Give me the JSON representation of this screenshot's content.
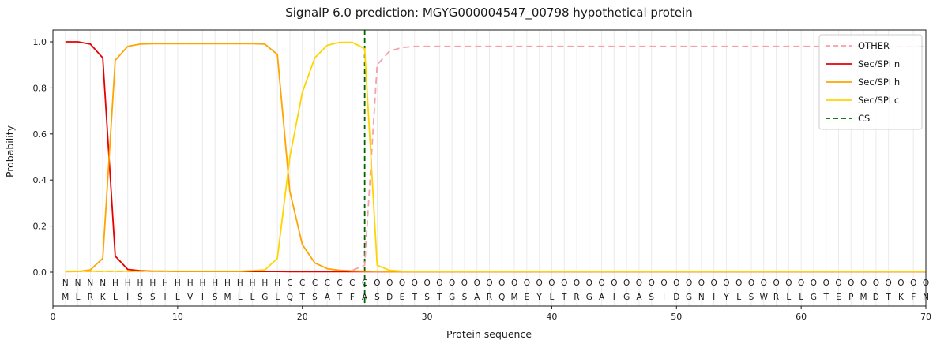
{
  "chart_data": {
    "type": "line",
    "title": "SignalP 6.0 prediction: MGYG000004547_00798 hypothetical protein",
    "xlabel": "Protein sequence",
    "ylabel": "Probability",
    "xlim": [
      0,
      70
    ],
    "ylim": [
      -0.15,
      1.05
    ],
    "xticks": [
      0,
      10,
      20,
      30,
      40,
      50,
      60,
      70
    ],
    "yticks": [
      0.0,
      0.2,
      0.4,
      0.6,
      0.8,
      1.0
    ],
    "grid": "vertical line per residue, light gray",
    "legend_position": "upper right",
    "x_positions": "residues 1 to 70",
    "series": [
      {
        "name": "OTHER",
        "color": "#f79fab",
        "dash": true,
        "values": [
          0.003,
          0.003,
          0.003,
          0.003,
          0.003,
          0.003,
          0.003,
          0.003,
          0.003,
          0.003,
          0.003,
          0.003,
          0.003,
          0.003,
          0.003,
          0.003,
          0.003,
          0.003,
          0.003,
          0.003,
          0.003,
          0.003,
          0.003,
          0.008,
          0.03,
          0.9,
          0.96,
          0.975,
          0.98,
          0.98,
          0.98,
          0.98,
          0.98,
          0.98,
          0.98,
          0.98,
          0.98,
          0.98,
          0.98,
          0.98,
          0.98,
          0.98,
          0.98,
          0.98,
          0.98,
          0.98,
          0.98,
          0.98,
          0.98,
          0.98,
          0.98,
          0.98,
          0.98,
          0.98,
          0.98,
          0.98,
          0.98,
          0.98,
          0.98,
          0.98,
          0.98,
          0.98,
          0.98,
          0.98,
          0.98,
          0.98,
          0.98,
          0.98,
          0.98,
          0.98
        ]
      },
      {
        "name": "Sec/SPI n",
        "color": "#e60000",
        "dash": false,
        "values": [
          1.0,
          1.0,
          0.99,
          0.93,
          0.07,
          0.012,
          0.006,
          0.004,
          0.004,
          0.003,
          0.003,
          0.003,
          0.003,
          0.003,
          0.003,
          0.003,
          0.003,
          0.003,
          0.002,
          0.002,
          0.002,
          0.002,
          0.002,
          0.002,
          0.002,
          0.002,
          0.002,
          0.002,
          0.002,
          0.002,
          0.002,
          0.002,
          0.002,
          0.002,
          0.002,
          0.002,
          0.002,
          0.002,
          0.002,
          0.002,
          0.002,
          0.002,
          0.002,
          0.002,
          0.002,
          0.002,
          0.002,
          0.002,
          0.002,
          0.002,
          0.002,
          0.002,
          0.002,
          0.002,
          0.002,
          0.002,
          0.002,
          0.002,
          0.002,
          0.002,
          0.002,
          0.002,
          0.002,
          0.002,
          0.002,
          0.002,
          0.002,
          0.002,
          0.002,
          0.002
        ]
      },
      {
        "name": "Sec/SPI h",
        "color": "#ffa400",
        "dash": false,
        "values": [
          0.002,
          0.003,
          0.01,
          0.06,
          0.92,
          0.98,
          0.99,
          0.992,
          0.992,
          0.992,
          0.992,
          0.992,
          0.992,
          0.992,
          0.992,
          0.992,
          0.99,
          0.945,
          0.35,
          0.12,
          0.04,
          0.015,
          0.008,
          0.005,
          0.004,
          0.003,
          0.002,
          0.002,
          0.002,
          0.002,
          0.002,
          0.002,
          0.002,
          0.002,
          0.002,
          0.002,
          0.002,
          0.002,
          0.002,
          0.002,
          0.002,
          0.002,
          0.002,
          0.002,
          0.002,
          0.002,
          0.002,
          0.002,
          0.002,
          0.002,
          0.002,
          0.002,
          0.002,
          0.002,
          0.002,
          0.002,
          0.002,
          0.002,
          0.002,
          0.002,
          0.002,
          0.002,
          0.002,
          0.002,
          0.002,
          0.002,
          0.002,
          0.002,
          0.002,
          0.002
        ]
      },
      {
        "name": "Sec/SPI c",
        "color": "#ffd500",
        "dash": false,
        "values": [
          0.004,
          0.004,
          0.004,
          0.004,
          0.004,
          0.004,
          0.004,
          0.004,
          0.004,
          0.004,
          0.004,
          0.004,
          0.004,
          0.004,
          0.004,
          0.006,
          0.01,
          0.06,
          0.5,
          0.78,
          0.93,
          0.985,
          0.998,
          0.998,
          0.97,
          0.03,
          0.008,
          0.004,
          0.003,
          0.003,
          0.003,
          0.003,
          0.003,
          0.003,
          0.003,
          0.003,
          0.003,
          0.003,
          0.003,
          0.003,
          0.003,
          0.003,
          0.003,
          0.003,
          0.003,
          0.003,
          0.003,
          0.003,
          0.003,
          0.003,
          0.003,
          0.003,
          0.003,
          0.003,
          0.003,
          0.003,
          0.003,
          0.003,
          0.003,
          0.003,
          0.003,
          0.003,
          0.003,
          0.003,
          0.003,
          0.003,
          0.003,
          0.003,
          0.003,
          0.003
        ]
      }
    ],
    "cs_line": {
      "name": "CS",
      "position": 25,
      "color": "#006400",
      "dash": true
    },
    "region_labels": "NNNNHHHHHHHHHHHHHHCCCCCCCOOOOOOOOOOOOOOOOOOOOOOOOOOOOOOOOOOOOOOOOOOOOO",
    "region_colors": {
      "N": "#e60000",
      "H": "#ffa400",
      "C": "#ffd500",
      "O": "#a3a3a3"
    },
    "sequence": "MLRKLISSILVISMLLGLQTSATFASDETSTGSARQMEYLTRGAIGASIDGNIYLSWRLLGTEPMDTKFN",
    "sequence_color": "#1a1a1a",
    "legend_entries": [
      "OTHER",
      "Sec/SPI n",
      "Sec/SPI h",
      "Sec/SPI c",
      "CS"
    ]
  }
}
